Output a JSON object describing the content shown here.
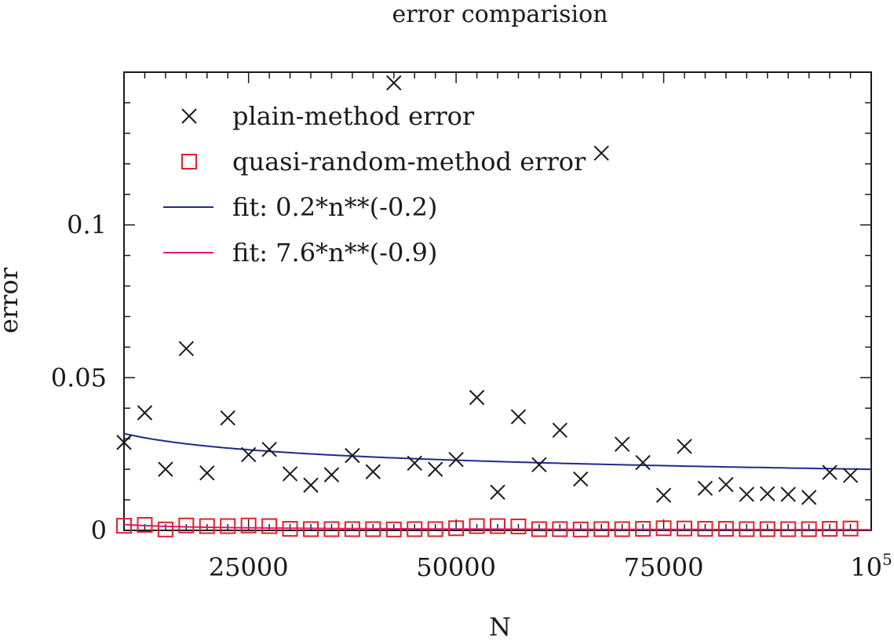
{
  "chart_data": {
    "type": "scatter",
    "title": "error comparision",
    "xlabel": "N",
    "ylabel": "error",
    "xlim": [
      10000,
      100000
    ],
    "ylim": [
      0,
      0.15
    ],
    "x_ticks": [
      {
        "value": 25000,
        "label": "25000"
      },
      {
        "value": 50000,
        "label": "50000"
      },
      {
        "value": 75000,
        "label": "75000"
      },
      {
        "value": 100000,
        "label": "10",
        "sup": "5"
      }
    ],
    "y_ticks": [
      {
        "value": 0,
        "label": "0"
      },
      {
        "value": 0.05,
        "label": "0.05"
      },
      {
        "value": 0.1,
        "label": "0.1"
      }
    ],
    "legend_position": "top-left",
    "series": [
      {
        "name": "plain-method error",
        "marker": "x",
        "color": "#1a1a1a",
        "points": [
          [
            10000,
            0.0288
          ],
          [
            12500,
            0.0385
          ],
          [
            15000,
            0.02
          ],
          [
            17500,
            0.0595
          ],
          [
            20000,
            0.0188
          ],
          [
            22500,
            0.0368
          ],
          [
            25000,
            0.0248
          ],
          [
            27500,
            0.0265
          ],
          [
            30000,
            0.0185
          ],
          [
            32500,
            0.0148
          ],
          [
            35000,
            0.0182
          ],
          [
            37500,
            0.0245
          ],
          [
            40000,
            0.0192
          ],
          [
            42500,
            0.1465
          ],
          [
            45000,
            0.022
          ],
          [
            47500,
            0.02
          ],
          [
            50000,
            0.0232
          ],
          [
            52500,
            0.0435
          ],
          [
            55000,
            0.0125
          ],
          [
            57500,
            0.0372
          ],
          [
            60000,
            0.0215
          ],
          [
            62500,
            0.0328
          ],
          [
            65000,
            0.0168
          ],
          [
            67500,
            0.1235
          ],
          [
            70000,
            0.0282
          ],
          [
            72500,
            0.0222
          ],
          [
            75000,
            0.0115
          ],
          [
            77500,
            0.0275
          ],
          [
            80000,
            0.0138
          ],
          [
            82500,
            0.015
          ],
          [
            85000,
            0.0118
          ],
          [
            87500,
            0.012
          ],
          [
            90000,
            0.0118
          ],
          [
            92500,
            0.0108
          ],
          [
            95000,
            0.019
          ],
          [
            97500,
            0.018
          ]
        ]
      },
      {
        "name": "quasi-random-method error",
        "marker": "square",
        "color": "#e0202a",
        "points": [
          [
            10000,
            0.0015
          ],
          [
            12500,
            0.0018
          ],
          [
            15000,
            0.0003
          ],
          [
            17500,
            0.0016
          ],
          [
            20000,
            0.0014
          ],
          [
            22500,
            0.0014
          ],
          [
            25000,
            0.0016
          ],
          [
            27500,
            0.0014
          ],
          [
            30000,
            0.0005
          ],
          [
            32500,
            0.0004
          ],
          [
            35000,
            0.0004
          ],
          [
            37500,
            0.0004
          ],
          [
            40000,
            0.0004
          ],
          [
            42500,
            0.0003
          ],
          [
            45000,
            0.0004
          ],
          [
            47500,
            0.0004
          ],
          [
            50000,
            0.0007
          ],
          [
            52500,
            0.0014
          ],
          [
            55000,
            0.0014
          ],
          [
            57500,
            0.0013
          ],
          [
            60000,
            0.0004
          ],
          [
            62500,
            0.0004
          ],
          [
            65000,
            0.0003
          ],
          [
            67500,
            0.0004
          ],
          [
            70000,
            0.0004
          ],
          [
            72500,
            0.0005
          ],
          [
            75000,
            0.0007
          ],
          [
            77500,
            0.0006
          ],
          [
            80000,
            0.0005
          ],
          [
            82500,
            0.0005
          ],
          [
            85000,
            0.0004
          ],
          [
            87500,
            0.0004
          ],
          [
            90000,
            0.0004
          ],
          [
            92500,
            0.0004
          ],
          [
            95000,
            0.0005
          ],
          [
            97500,
            0.0006
          ]
        ]
      },
      {
        "name": "fit: 0.2*n**(-0.2)",
        "type": "line",
        "color": "#1f2a8c",
        "coef": 0.2,
        "exponent": -0.2
      },
      {
        "name": "fit: 7.6*n**(-0.9)",
        "type": "line",
        "color": "#e0157a",
        "coef": 7.6,
        "exponent": -0.9
      }
    ]
  }
}
